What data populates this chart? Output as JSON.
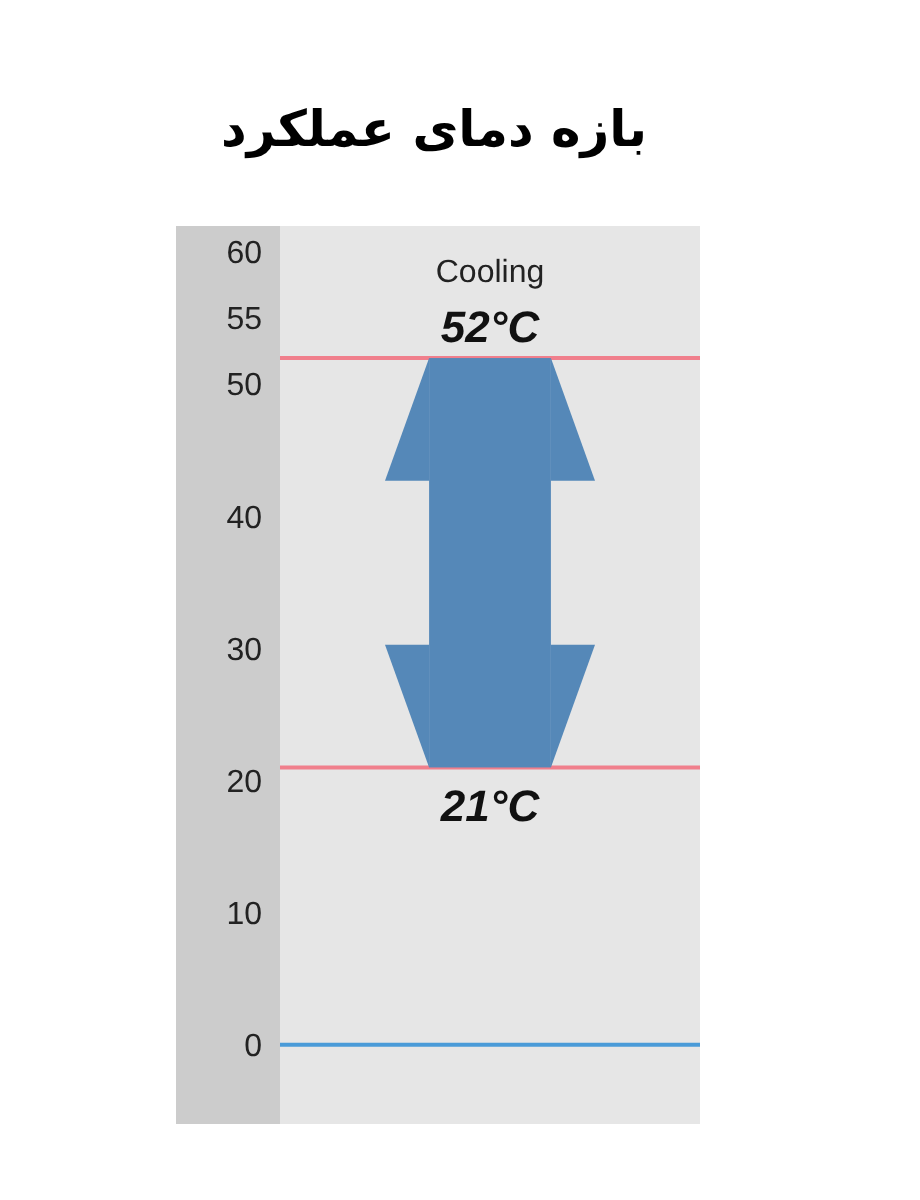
{
  "chart_data": {
    "type": "bar",
    "title": "بازه دمای عملکرد",
    "categories": [
      null
    ],
    "values": [
      31
    ],
    "base": [
      21
    ],
    "color": "#5588b8",
    "ylim": [
      -6,
      62
    ],
    "yticks": [
      0,
      10,
      20,
      30,
      40,
      50,
      55,
      60
    ],
    "tick_labels": "y",
    "ref_lines": [
      {
        "axis": "y",
        "value": 52,
        "label": "52°C",
        "color": "#f07f8c"
      },
      {
        "axis": "y",
        "value": 21,
        "label": "21°C",
        "color": "#f07f8c"
      },
      {
        "axis": "y",
        "value": 0,
        "color": "#4a9bd8"
      }
    ],
    "annotations": [
      "Cooling"
    ]
  }
}
